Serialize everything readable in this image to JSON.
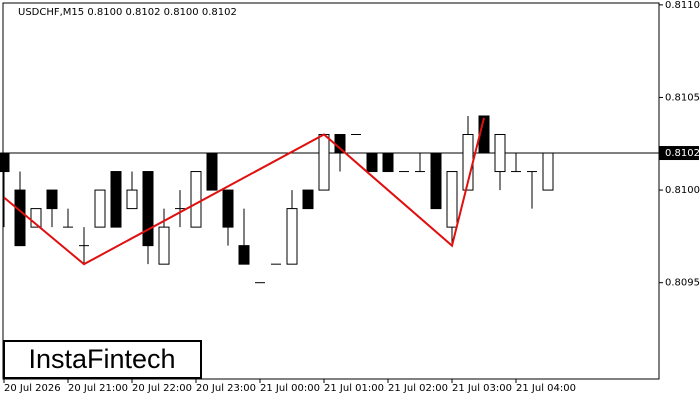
{
  "chart_data": {
    "type": "candlestick",
    "title": "USDCHF,M15  0.8100 0.8102 0.8100 0.8102",
    "categories": [
      "20 Jul 2026",
      null,
      null,
      null,
      "20 Jul 21:00",
      null,
      null,
      null,
      "20 Jul 22:00",
      null,
      null,
      null,
      "20 Jul 23:00",
      null,
      null,
      null,
      "21 Jul 00:00",
      null,
      null,
      null,
      "21 Jul 01:00",
      null,
      null,
      null,
      "21 Jul 02:00",
      null,
      null,
      null,
      "21 Jul 03:00",
      null,
      null,
      null,
      "21 Jul 04:00",
      null,
      null
    ],
    "open": [
      0.8102,
      0.81,
      0.8098,
      0.81,
      0.8098,
      0.8097,
      0.8098,
      0.8101,
      0.8099,
      0.8101,
      0.8096,
      0.8099,
      0.8098,
      0.8102,
      0.81,
      0.8097,
      0.8095,
      0.8096,
      0.8096,
      0.81,
      0.81,
      0.8103,
      0.8103,
      0.8102,
      0.8102,
      0.8101,
      0.8101,
      0.8102,
      0.8098,
      0.81,
      0.8104,
      0.8101,
      0.8101,
      0.8101,
      0.81
    ],
    "high": [
      0.8102,
      0.8101,
      0.8099,
      0.81,
      0.8099,
      0.8098,
      0.81,
      0.8101,
      0.8101,
      0.8101,
      0.8099,
      0.81,
      0.8101,
      0.8102,
      0.81,
      0.8099,
      0.8095,
      0.8096,
      0.81,
      0.81,
      0.8103,
      0.8103,
      0.8103,
      0.8102,
      0.8102,
      0.8101,
      0.8102,
      0.8102,
      0.8101,
      0.8104,
      0.8104,
      0.8103,
      0.8102,
      0.8101,
      0.8102
    ],
    "low": [
      0.8098,
      0.8097,
      0.8098,
      0.8098,
      0.8098,
      0.8096,
      0.8098,
      0.8098,
      0.8099,
      0.8096,
      0.8096,
      0.8098,
      0.8098,
      0.81,
      0.8097,
      0.8096,
      0.8095,
      0.8096,
      0.8096,
      0.8099,
      0.81,
      0.8101,
      0.8103,
      0.8101,
      0.8101,
      0.8101,
      0.8101,
      0.8099,
      0.8097,
      0.81,
      0.8102,
      0.81,
      0.8101,
      0.8099,
      0.81
    ],
    "close": [
      0.8101,
      0.8097,
      0.8099,
      0.8099,
      0.8098,
      0.8097,
      0.81,
      0.8098,
      0.81,
      0.8097,
      0.8098,
      0.8099,
      0.8101,
      0.81,
      0.8098,
      0.8096,
      0.8095,
      0.8096,
      0.8099,
      0.8099,
      0.8103,
      0.8102,
      0.8103,
      0.8101,
      0.8101,
      0.8101,
      0.8101,
      0.8099,
      0.8101,
      0.8103,
      0.8102,
      0.8103,
      0.8101,
      0.8101,
      0.8102
    ],
    "bull_color": "#ffffff",
    "bear_color": "#000000",
    "ylim": [
      0.80898,
      0.81101
    ],
    "yticks": [
      0.8095,
      {
        "value": 0.81,
        "label": "0.8100"
      },
      0.8105,
      {
        "value": 0.811,
        "label": "0.8110"
      }
    ],
    "current_price": 0.8102,
    "pattern": {
      "color": "#e01010",
      "x": [
        0,
        5,
        20,
        28,
        30
      ],
      "values": [
        0.80996,
        0.8096,
        0.8103,
        0.8097,
        0.81039
      ]
    },
    "logo": "InstaFintech"
  }
}
